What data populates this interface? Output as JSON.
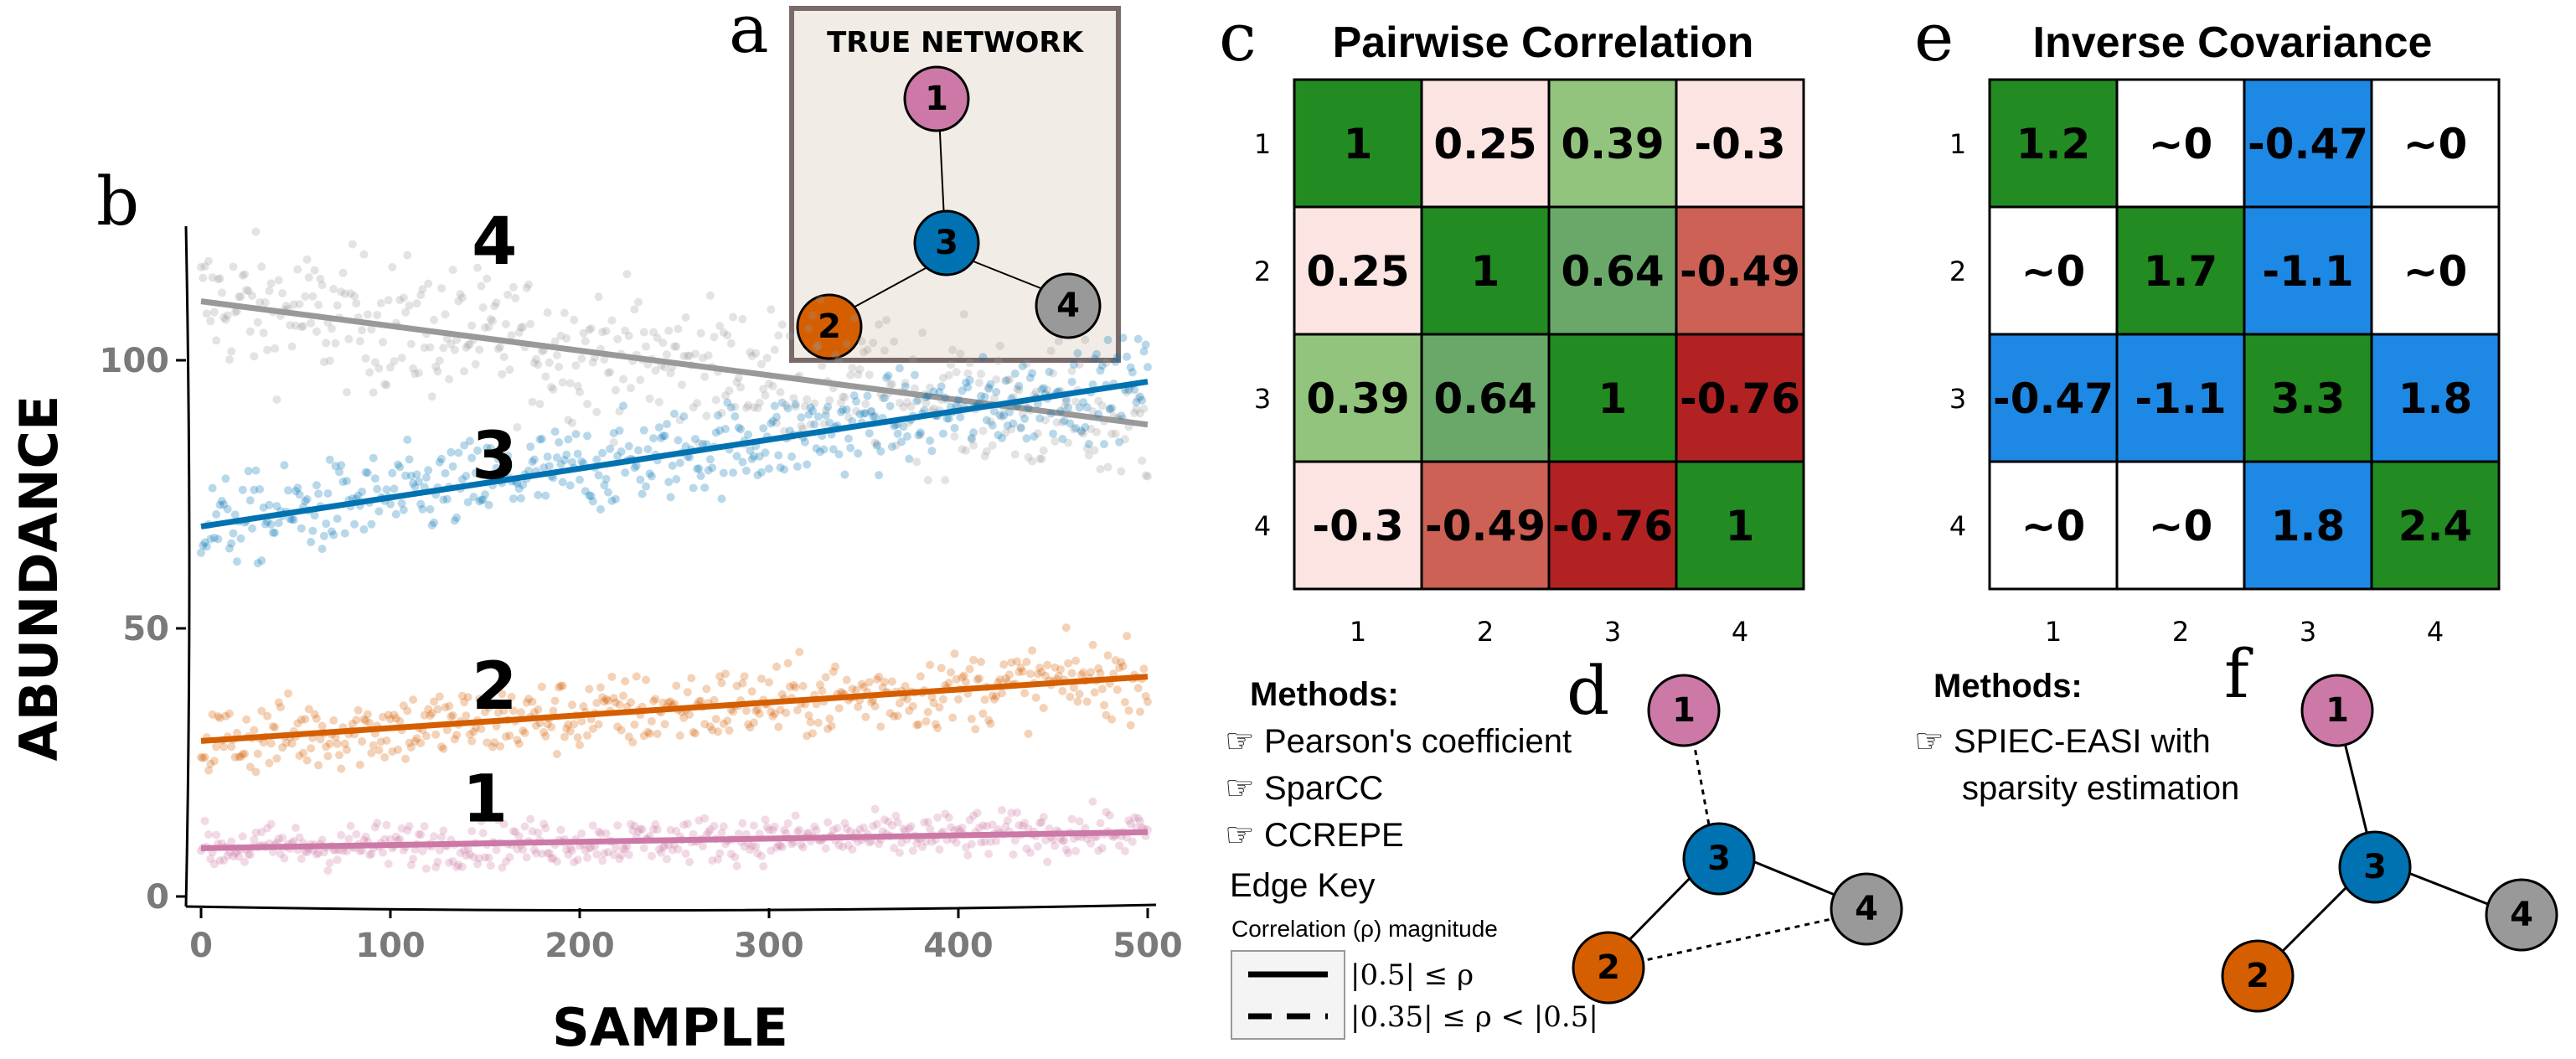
{
  "panel_letters": {
    "a": "a",
    "b": "b",
    "c": "c",
    "d": "d",
    "e": "e",
    "f": "f"
  },
  "true_network": {
    "title": "TRUE NETWORK",
    "nodes": [
      "1",
      "2",
      "3",
      "4"
    ]
  },
  "colors": {
    "n1": "#cc79a7",
    "n2": "#d55e00",
    "n3": "#0072b2",
    "n4": "#999999",
    "dark_green": "#228b22",
    "mid_green": "#6aa86a",
    "light_green": "#93c47d",
    "pale_red": "#fbe4e2",
    "mid_red": "#cd6155",
    "dark_red": "#b22222",
    "blue": "#1e88e5"
  },
  "chart_data": [
    {
      "type": "scatter",
      "panel": "b",
      "xlabel": "SAMPLE",
      "ylabel": "ABUNDANCE",
      "xlim": [
        0,
        500
      ],
      "ylim": [
        0,
        125
      ],
      "xticks": [
        "0",
        "100",
        "200",
        "300",
        "400",
        "500"
      ],
      "yticks": [
        "0",
        "50",
        "100"
      ],
      "series": [
        {
          "name": "4",
          "color": "#999999",
          "trend": [
            [
              0,
              111
            ],
            [
              500,
              88
            ]
          ],
          "noise": 9
        },
        {
          "name": "3",
          "color": "#0072b2",
          "trend": [
            [
              0,
              69
            ],
            [
              500,
              96
            ]
          ],
          "noise": 6
        },
        {
          "name": "2",
          "color": "#d55e00",
          "trend": [
            [
              0,
              29
            ],
            [
              500,
              41
            ]
          ],
          "noise": 5
        },
        {
          "name": "1",
          "color": "#cc79a7",
          "trend": [
            [
              0,
              9
            ],
            [
              500,
              12
            ]
          ],
          "noise": 3
        }
      ]
    },
    {
      "type": "heatmap",
      "panel": "c",
      "title": "Pairwise Correlation",
      "row_labels": [
        "1",
        "2",
        "3",
        "4"
      ],
      "col_labels": [
        "1",
        "2",
        "3",
        "4"
      ],
      "cells": [
        [
          {
            "v": "1",
            "c": "#228b22"
          },
          {
            "v": "0.25",
            "c": "#fbe4e2"
          },
          {
            "v": "0.39",
            "c": "#93c47d"
          },
          {
            "v": "-0.3",
            "c": "#fbe4e2"
          }
        ],
        [
          {
            "v": "0.25",
            "c": "#fbe4e2"
          },
          {
            "v": "1",
            "c": "#228b22"
          },
          {
            "v": "0.64",
            "c": "#6aa86a"
          },
          {
            "v": "-0.49",
            "c": "#cd6155"
          }
        ],
        [
          {
            "v": "0.39",
            "c": "#93c47d"
          },
          {
            "v": "0.64",
            "c": "#6aa86a"
          },
          {
            "v": "1",
            "c": "#228b22"
          },
          {
            "v": "-0.76",
            "c": "#b22222"
          }
        ],
        [
          {
            "v": "-0.3",
            "c": "#fbe4e2"
          },
          {
            "v": "-0.49",
            "c": "#cd6155"
          },
          {
            "v": "-0.76",
            "c": "#b22222"
          },
          {
            "v": "1",
            "c": "#228b22"
          }
        ]
      ]
    },
    {
      "type": "heatmap",
      "panel": "e",
      "title": "Inverse Covariance",
      "row_labels": [
        "1",
        "2",
        "3",
        "4"
      ],
      "col_labels": [
        "1",
        "2",
        "3",
        "4"
      ],
      "cells": [
        [
          {
            "v": "1.2",
            "c": "#228b22"
          },
          {
            "v": "~0",
            "c": "#ffffff"
          },
          {
            "v": "-0.47",
            "c": "#1e88e5"
          },
          {
            "v": "~0",
            "c": "#ffffff"
          }
        ],
        [
          {
            "v": "~0",
            "c": "#ffffff"
          },
          {
            "v": "1.7",
            "c": "#228b22"
          },
          {
            "v": "-1.1",
            "c": "#1e88e5"
          },
          {
            "v": "~0",
            "c": "#ffffff"
          }
        ],
        [
          {
            "v": "-0.47",
            "c": "#1e88e5"
          },
          {
            "v": "-1.1",
            "c": "#1e88e5"
          },
          {
            "v": "3.3",
            "c": "#228b22"
          },
          {
            "v": "1.8",
            "c": "#1e88e5"
          }
        ],
        [
          {
            "v": "~0",
            "c": "#ffffff"
          },
          {
            "v": "~0",
            "c": "#ffffff"
          },
          {
            "v": "1.8",
            "c": "#1e88e5"
          },
          {
            "v": "2.4",
            "c": "#228b22"
          }
        ]
      ]
    }
  ],
  "methods_d": {
    "heading": "Methods:",
    "items": [
      "☞ Pearson's coefficient",
      "☞ SparCC",
      "☞ CCREPE"
    ],
    "edge_key": "Edge Key",
    "edge_key_sub": "Correlation (ρ) magnitude",
    "solid_label": "|0.5| ≤ ρ",
    "dashed_label": "|0.35| ≤ ρ < |0.5|"
  },
  "methods_f": {
    "heading": "Methods:",
    "line1": "☞ SPIEC-EASI with",
    "line2": "sparsity estimation"
  },
  "network_d": {
    "nodes": [
      "1",
      "2",
      "3",
      "4"
    ]
  },
  "network_f": {
    "nodes": [
      "1",
      "2",
      "3",
      "4"
    ]
  }
}
